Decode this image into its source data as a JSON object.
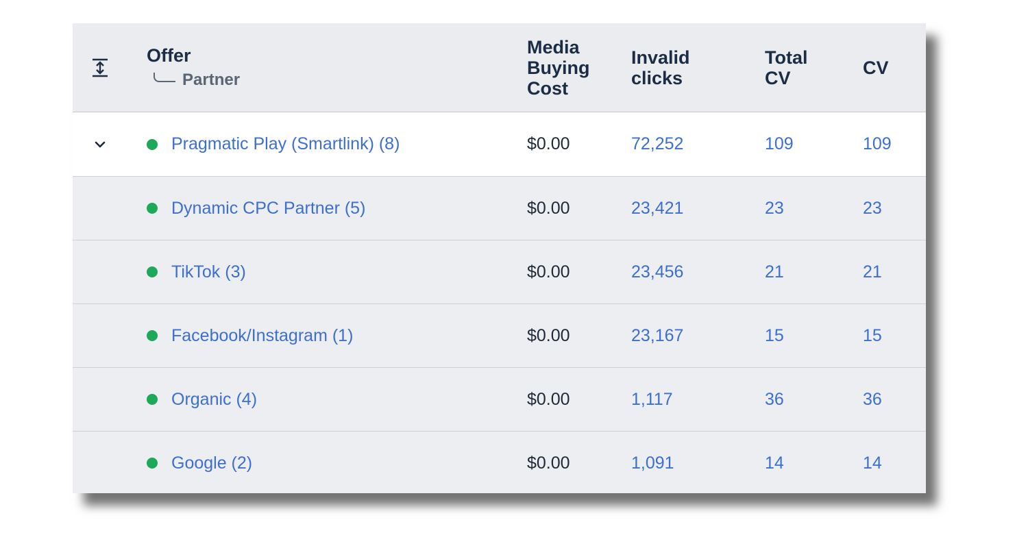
{
  "table": {
    "columns": {
      "offer": "Offer",
      "partner": "Partner",
      "media_cost_l1": "Media",
      "media_cost_l2": "Buying",
      "media_cost_l3": "Cost",
      "invalid_l1": "Invalid",
      "invalid_l2": "clicks",
      "total_cv_l1": "Total",
      "total_cv_l2": "CV",
      "cv": "CV"
    },
    "parent": {
      "name": "Pragmatic Play (Smartlink) (8)",
      "cost": "$0.00",
      "invalid": "72,252",
      "total_cv": "109",
      "cv": "109"
    },
    "rows": [
      {
        "name": "Dynamic CPC Partner (5)",
        "cost": "$0.00",
        "invalid": "23,421",
        "total_cv": "23",
        "cv": "23"
      },
      {
        "name": "TikTok (3)",
        "cost": "$0.00",
        "invalid": "23,456",
        "total_cv": "21",
        "cv": "21"
      },
      {
        "name": "Facebook/Instagram (1)",
        "cost": "$0.00",
        "invalid": "23,167",
        "total_cv": "15",
        "cv": "15"
      },
      {
        "name": "Organic (4)",
        "cost": "$0.00",
        "invalid": "1,117",
        "total_cv": "36",
        "cv": "36"
      },
      {
        "name": "Google (2)",
        "cost": "$0.00",
        "invalid": "1,091",
        "total_cv": "14",
        "cv": "14"
      }
    ]
  },
  "icons": {
    "expand_all": "expand-all-icon",
    "collapse": "chevron-down-icon",
    "status": "status-dot-icon"
  },
  "colors": {
    "link": "#3d6fd0",
    "status_active": "#1ea85a",
    "header_text": "#1c2c44"
  }
}
